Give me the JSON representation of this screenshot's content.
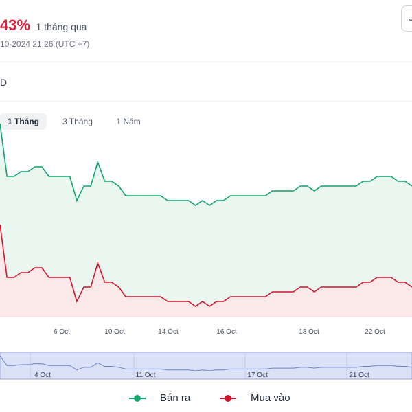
{
  "header": {
    "change_pct": "43%",
    "change_period": "1 tháng qua",
    "timestamp": "10-2024 21:26 (UTC +7)",
    "unit_label": "D"
  },
  "tabs": [
    {
      "label": "1 Tháng",
      "active": true
    },
    {
      "label": "3 Tháng",
      "active": false
    },
    {
      "label": "1 Năm",
      "active": false
    }
  ],
  "colors": {
    "sell": "#11a36a",
    "sell_fill": "#eaf7f0",
    "buy": "#d0142c",
    "buy_fill": "#fbe9ea",
    "navigator_fill": "#dbe1f7",
    "change": "#d6233b"
  },
  "icons": {
    "top_button": "chevron-down-icon"
  },
  "chart_data": {
    "type": "area",
    "x_ticks": [
      "6 Oct",
      "10 Oct",
      "14 Oct",
      "16 Oct",
      "18 Oct",
      "22 Oct"
    ],
    "series": [
      {
        "name": "Bán ra",
        "values": [
          88.3,
          87.2,
          87.2,
          87.3,
          87.3,
          87.4,
          87.4,
          87.2,
          87.2,
          87.2,
          87.2,
          86.7,
          87.0,
          87.0,
          87.5,
          87.1,
          87.1,
          87.0,
          86.8,
          86.8,
          86.8,
          86.8,
          86.8,
          86.8,
          86.7,
          86.7,
          86.7,
          86.7,
          86.6,
          86.7,
          86.6,
          86.7,
          86.7,
          86.8,
          86.8,
          86.8,
          86.8,
          86.8,
          86.8,
          86.9,
          86.9,
          86.9,
          86.9,
          87.0,
          87.0,
          86.9,
          87.0,
          87.0,
          87.0,
          87.0,
          87.0,
          87.0,
          87.1,
          87.1,
          87.2,
          87.2,
          87.2,
          87.1,
          87.1,
          87.0
        ]
      },
      {
        "name": "Mua vào",
        "values": [
          86.2,
          85.1,
          85.1,
          85.2,
          85.2,
          85.3,
          85.3,
          85.1,
          85.1,
          85.1,
          85.1,
          84.6,
          84.9,
          84.9,
          85.4,
          85.0,
          85.0,
          84.9,
          84.7,
          84.7,
          84.7,
          84.7,
          84.7,
          84.7,
          84.6,
          84.6,
          84.6,
          84.6,
          84.5,
          84.6,
          84.5,
          84.6,
          84.6,
          84.7,
          84.7,
          84.7,
          84.7,
          84.7,
          84.7,
          84.8,
          84.8,
          84.8,
          84.8,
          84.9,
          84.9,
          84.8,
          84.9,
          84.9,
          84.9,
          84.9,
          84.9,
          84.9,
          85.0,
          85.0,
          85.1,
          85.1,
          85.1,
          85.0,
          85.0,
          84.9
        ]
      }
    ],
    "navigator_ticks": [
      "4 Oct",
      "11 Oct",
      "17 Oct",
      "21 Oct"
    ],
    "legend": [
      "Bán ra",
      "Mua vào"
    ],
    "legend_position": "bottom-center"
  }
}
